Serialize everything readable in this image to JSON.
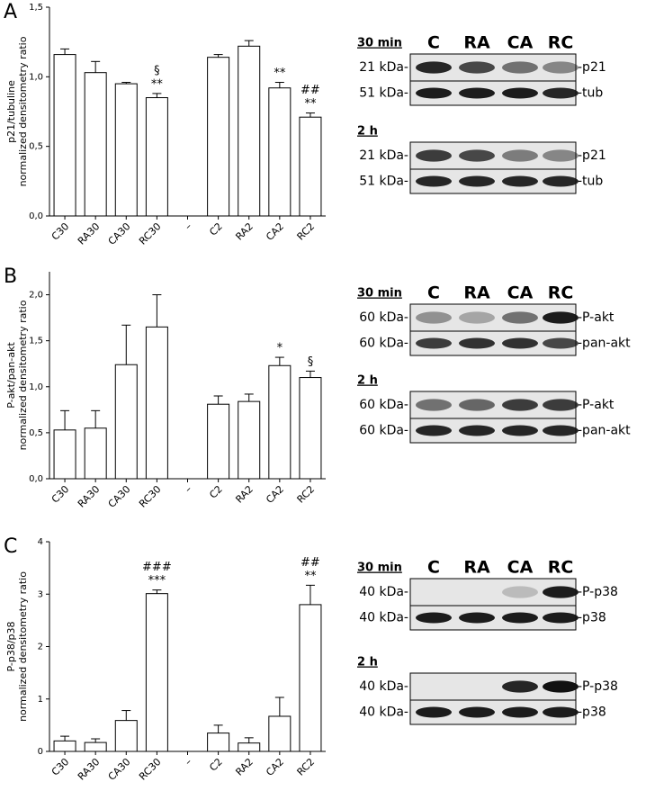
{
  "chart_data": [
    {
      "type": "bar",
      "panel": "A",
      "ylabel": [
        "p21/tubuline",
        "normalized densitometry ratio"
      ],
      "categories": [
        "C30",
        "RA30",
        "CA30",
        "RC30",
        "–",
        "C2",
        "RA2",
        "CA2",
        "RC2"
      ],
      "values": [
        1.16,
        1.03,
        0.95,
        0.85,
        null,
        1.14,
        1.22,
        0.92,
        0.71
      ],
      "errors": [
        0.04,
        0.08,
        0.01,
        0.03,
        null,
        0.02,
        0.04,
        0.04,
        0.03
      ],
      "bar_labels": [
        null,
        null,
        null,
        [
          "§",
          "**"
        ],
        null,
        null,
        null,
        [
          "**"
        ],
        [
          "##",
          "**"
        ]
      ],
      "ylim": [
        0,
        1.5
      ],
      "yticks": [
        {
          "value": 0,
          "label": "0,0"
        },
        {
          "value": 0.5,
          "label": "0,5"
        },
        {
          "value": 1.0,
          "label": "1,0"
        },
        {
          "value": 1.5,
          "label": "1,5"
        }
      ]
    },
    {
      "type": "bar",
      "panel": "B",
      "ylabel": [
        "P-akt/pan-akt",
        "normalized densitometry ratio"
      ],
      "categories": [
        "C30",
        "RA30",
        "CA30",
        "RC30",
        "–",
        "C2",
        "RA2",
        "CA2",
        "RC2"
      ],
      "values": [
        0.53,
        0.55,
        1.24,
        1.65,
        null,
        0.81,
        0.84,
        1.23,
        1.1
      ],
      "errors": [
        0.21,
        0.19,
        0.43,
        0.35,
        null,
        0.09,
        0.08,
        0.09,
        0.07
      ],
      "bar_labels": [
        null,
        null,
        null,
        null,
        null,
        null,
        null,
        [
          "*"
        ],
        [
          "§"
        ]
      ],
      "ylim": [
        0,
        2.25
      ],
      "yticks": [
        {
          "value": 0,
          "label": "0,0"
        },
        {
          "value": 0.5,
          "label": "0,5"
        },
        {
          "value": 1.0,
          "label": "1,0"
        },
        {
          "value": 1.5,
          "label": "1,5"
        },
        {
          "value": 2.0,
          "label": "2,0"
        }
      ]
    },
    {
      "type": "bar",
      "panel": "C",
      "ylabel": [
        "P-p38/p38",
        "normalized densitometry ratio"
      ],
      "categories": [
        "C30",
        "RA30",
        "CA30",
        "RC30",
        "–",
        "C2",
        "RA2",
        "CA2",
        "RC2"
      ],
      "values": [
        0.2,
        0.17,
        0.59,
        3.01,
        null,
        0.35,
        0.16,
        0.67,
        2.8
      ],
      "errors": [
        0.09,
        0.07,
        0.19,
        0.07,
        null,
        0.15,
        0.1,
        0.36,
        0.37
      ],
      "bar_labels": [
        null,
        null,
        null,
        [
          "###",
          "***"
        ],
        null,
        null,
        null,
        null,
        [
          "##",
          "**"
        ]
      ],
      "ylim": [
        0,
        4
      ],
      "yticks": [
        0,
        1,
        2,
        3,
        4
      ]
    }
  ],
  "blots": [
    {
      "time": "30 min",
      "lanes": [
        "C",
        "RA",
        "CA",
        "RC"
      ],
      "rows": [
        {
          "left": "21 kDa-",
          "right": "-p21"
        },
        {
          "left": "51 kDa-",
          "right": "-tub"
        }
      ]
    },
    {
      "time": "2 h",
      "rows": [
        {
          "left": "21 kDa-",
          "right": "-p21"
        },
        {
          "left": "51 kDa-",
          "right": "-tub"
        }
      ]
    },
    {
      "time": "30 min",
      "lanes": [
        "C",
        "RA",
        "CA",
        "RC"
      ],
      "rows": [
        {
          "left": "60 kDa-",
          "right": "-P-akt"
        },
        {
          "left": "60 kDa-",
          "right": "-pan-akt"
        }
      ]
    },
    {
      "time": "2 h",
      "rows": [
        {
          "left": "60 kDa-",
          "right": "-P-akt"
        },
        {
          "left": "60 kDa-",
          "right": "-pan-akt"
        }
      ]
    },
    {
      "time": "30 min",
      "lanes": [
        "C",
        "RA",
        "CA",
        "RC"
      ],
      "rows": [
        {
          "left": "40 kDa-",
          "right": "-P-p38"
        },
        {
          "left": "40 kDa-",
          "right": "-p38"
        }
      ]
    },
    {
      "time": "2 h",
      "rows": [
        {
          "left": "40 kDa-",
          "right": "-P-p38"
        },
        {
          "left": "40 kDa-",
          "right": "-p38"
        }
      ]
    }
  ]
}
